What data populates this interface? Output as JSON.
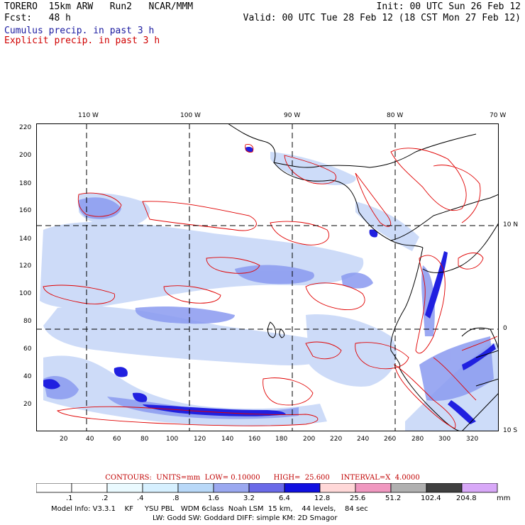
{
  "header": {
    "line1_left": "TORERO  15km ARW   Run2   NCAR/MMM",
    "line1_right": "Init: 00 UTC Sun 26 Feb 12",
    "line2_left": "Fcst:   48 h",
    "line2_right": "Valid: 00 UTC Tue 28 Feb 12 (18 CST Mon 27 Feb 12)",
    "cumulus_label": "Cumulus precip. in past 3 h",
    "explicit_label": "Explicit precip. in past 3 h"
  },
  "axes": {
    "lon_labels": [
      "110 W",
      "100 W",
      "90 W",
      "80 W",
      "70 W"
    ],
    "lat_labels": [
      "10 N",
      "0",
      "10 S"
    ],
    "y_ticks": [
      "220",
      "200",
      "180",
      "160",
      "140",
      "120",
      "100",
      "80",
      "60",
      "40",
      "20"
    ],
    "x_ticks": [
      "20",
      "40",
      "60",
      "80",
      "100",
      "120",
      "140",
      "160",
      "180",
      "200",
      "220",
      "240",
      "260",
      "280",
      "300",
      "320"
    ]
  },
  "contour_info": "CONTOURS:  UNITS=mm  LOW= 0.10000      HIGH=  25.600     INTERVAL=X  4.0000",
  "colorbar": {
    "unit": "mm",
    "labels": [
      ".1",
      ".2",
      ".4",
      ".8",
      "1.6",
      "3.2",
      "6.4",
      "12.8",
      "25.6",
      "51.2",
      "102.4",
      "204.8"
    ],
    "colors": [
      "#ffffff",
      "#ffffff",
      "#eafaff",
      "#d6f0ff",
      "#b8d8f8",
      "#9aa8f0",
      "#6a6ae8",
      "#1010e0",
      "#ffd8d8",
      "#f098c0",
      "#b0b0b0",
      "#404040",
      "#d8a8f8"
    ]
  },
  "footer": {
    "line1": "Model Info: V3.3.1    KF     YSU PBL   WDM 6class  Noah LSM  15 km,    44 levels,    84 sec",
    "line2": "LW: Godd SW: Goddard DIFF: simple KM: 2D Smagor"
  },
  "colors": {
    "cumulus": "#1a1aa0",
    "explicit": "#d00000",
    "precip_light": "#c8d8f8",
    "precip_mid": "#8a9af0",
    "precip_heavy": "#2020e0",
    "contour": "#e00000"
  }
}
